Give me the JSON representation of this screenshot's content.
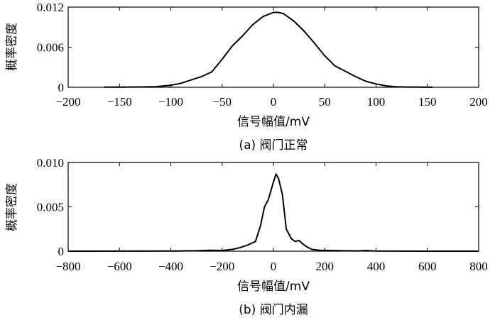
{
  "chart_data": [
    {
      "type": "line",
      "caption": "(a) 阀门正常",
      "xlabel": "信号幅值/mV",
      "ylabel": "概率密度",
      "xlim": [
        -200,
        200
      ],
      "ylim": [
        0,
        0.012
      ],
      "xticks": [
        -200,
        -150,
        -100,
        -50,
        0,
        50,
        100,
        150,
        200
      ],
      "xtick_labels": [
        "−200",
        "−150",
        "−100",
        "−50",
        "0",
        "50",
        "100",
        "150",
        "200"
      ],
      "yticks": [
        0,
        0.006,
        0.012
      ],
      "ytick_labels": [
        "0",
        "0.006",
        "0.012"
      ],
      "grid": false,
      "series": [
        {
          "x": [
            -165,
            -150,
            -130,
            -115,
            -100,
            -90,
            -80,
            -70,
            -60,
            -50,
            -40,
            -30,
            -20,
            -10,
            0,
            5,
            10,
            20,
            30,
            40,
            50,
            60,
            70,
            80,
            90,
            100,
            110,
            120,
            130,
            145,
            155
          ],
          "y": [
            2e-05,
            3e-05,
            5e-05,
            0.0001,
            0.0003,
            0.0006,
            0.0011,
            0.0016,
            0.0023,
            0.0042,
            0.0062,
            0.0077,
            0.0094,
            0.0106,
            0.0112,
            0.0112,
            0.011,
            0.0099,
            0.0084,
            0.0066,
            0.0047,
            0.0032,
            0.0024,
            0.0016,
            0.0009,
            0.0005,
            0.0002,
            8e-05,
            4e-05,
            2e-05,
            1e-05
          ]
        }
      ]
    },
    {
      "type": "line",
      "caption": "(b) 阀门内漏",
      "xlabel": "信号幅值/mV",
      "ylabel": "概率密度",
      "xlim": [
        -800,
        800
      ],
      "ylim": [
        0,
        0.01
      ],
      "xticks": [
        -800,
        -600,
        -400,
        -200,
        0,
        200,
        400,
        600,
        800
      ],
      "xtick_labels": [
        "−800",
        "−600",
        "−400",
        "−200",
        "0",
        "200",
        "400",
        "600",
        "800"
      ],
      "yticks": [
        0,
        0.005,
        0.01
      ],
      "ytick_labels": [
        "0",
        "0.005",
        "0.010"
      ],
      "grid": false,
      "series": [
        {
          "x": [
            -800,
            -400,
            -300,
            -250,
            -200,
            -160,
            -130,
            -100,
            -70,
            -50,
            -35,
            -20,
            0,
            10,
            20,
            35,
            50,
            70,
            85,
            100,
            115,
            130,
            150,
            180,
            220,
            280,
            330,
            360,
            400,
            600,
            800
          ],
          "y": [
            0,
            2e-05,
            5e-05,
            0.0001,
            8e-05,
            0.0002,
            0.0004,
            0.0007,
            0.0011,
            0.0029,
            0.005,
            0.0058,
            0.0078,
            0.0087,
            0.0082,
            0.0064,
            0.0025,
            0.0014,
            0.0011,
            0.0012,
            0.0008,
            0.0005,
            0.0002,
            0.0001,
            8e-05,
            5e-05,
            3e-05,
            8e-05,
            2e-05,
            0,
            0
          ]
        }
      ]
    }
  ]
}
